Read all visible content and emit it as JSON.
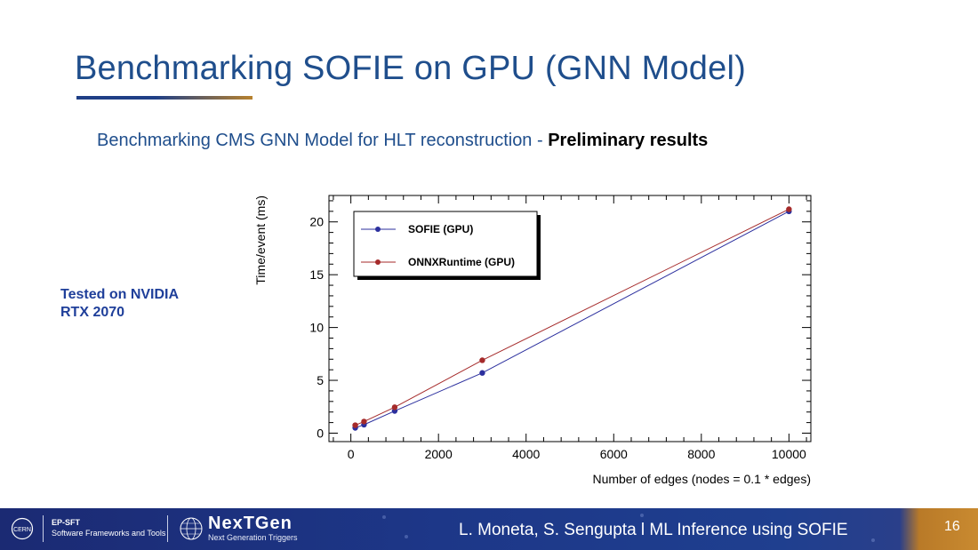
{
  "slide": {
    "title": "Benchmarking SOFIE on GPU (GNN Model)",
    "subtitle_normal": "Benchmarking CMS GNN Model for HLT reconstruction - ",
    "subtitle_bold": "Preliminary results",
    "note_line1": "Tested on NVIDIA",
    "note_line2": "RTX 2070"
  },
  "footer": {
    "org_line1": "EP-SFT",
    "org_line2": "Software Frameworks and Tools",
    "nextgen_name": "NexTGen",
    "nextgen_tagline": "Next Generation Triggers",
    "credit": "L. Moneta, S. Sengupta l   ML Inference using SOFIE",
    "page_number": "16",
    "logo_text": "CERN"
  },
  "colors": {
    "title": "#1f4e8c",
    "sofie": "#2b2f9e",
    "onnx": "#a52a2a",
    "footer_bg": "#1d3788",
    "accent": "#c98a30"
  },
  "chart_data": {
    "type": "line",
    "xlabel": "Number of edges (nodes = 0.1 * edges)",
    "ylabel": "Time/event (ms)",
    "xlim": [
      -500,
      10500
    ],
    "ylim": [
      -0.8,
      22.5
    ],
    "xticks": [
      0,
      2000,
      4000,
      6000,
      8000,
      10000
    ],
    "yticks": [
      0,
      5,
      10,
      15,
      20
    ],
    "grid": false,
    "legend_position": "top-left",
    "series": [
      {
        "name": "SOFIE (GPU)",
        "color": "#2b2f9e",
        "x": [
          100,
          300,
          1000,
          3000,
          10000
        ],
        "y": [
          0.5,
          0.8,
          2.1,
          5.7,
          21.0
        ]
      },
      {
        "name": "ONNXRuntime (GPU)",
        "color": "#a52a2a",
        "x": [
          100,
          300,
          1000,
          3000,
          10000
        ],
        "y": [
          0.75,
          1.1,
          2.45,
          6.9,
          21.2
        ]
      }
    ]
  }
}
